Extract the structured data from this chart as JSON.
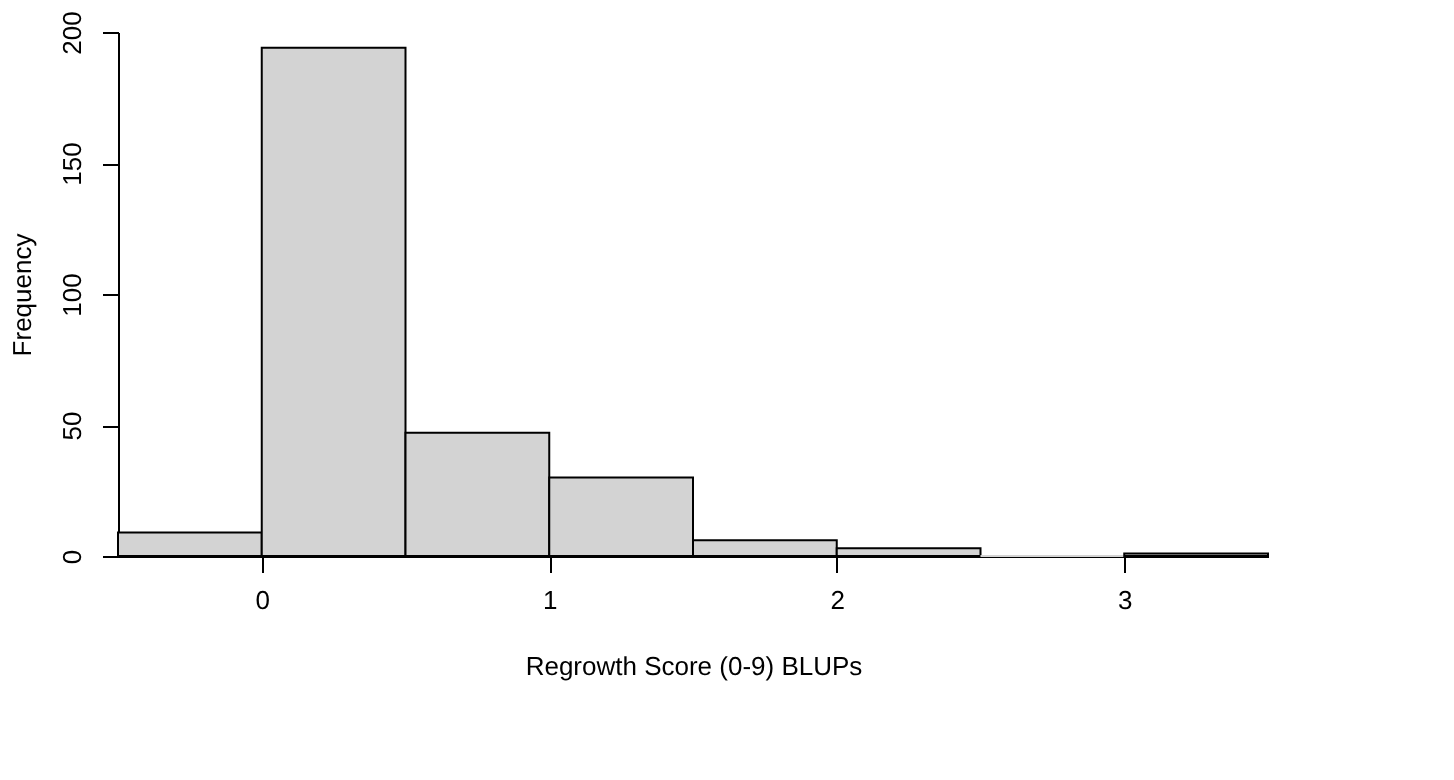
{
  "chart_data": {
    "type": "histogram",
    "xlabel": "Regrowth Score (0-9) BLUPs",
    "ylabel": "Frequency",
    "bins": [
      -0.5,
      0,
      0.5,
      1,
      1.5,
      2,
      2.5,
      3,
      3.5
    ],
    "values": [
      9,
      194,
      47,
      30,
      6,
      3,
      0,
      1
    ],
    "color": "#d3d3d3",
    "xlim": [
      -0.5,
      3.5
    ],
    "xticks": [
      0,
      1,
      2,
      3
    ],
    "ylim": [
      0,
      200
    ],
    "yticks": [
      0,
      50,
      100,
      150,
      200
    ],
    "grid": false
  }
}
